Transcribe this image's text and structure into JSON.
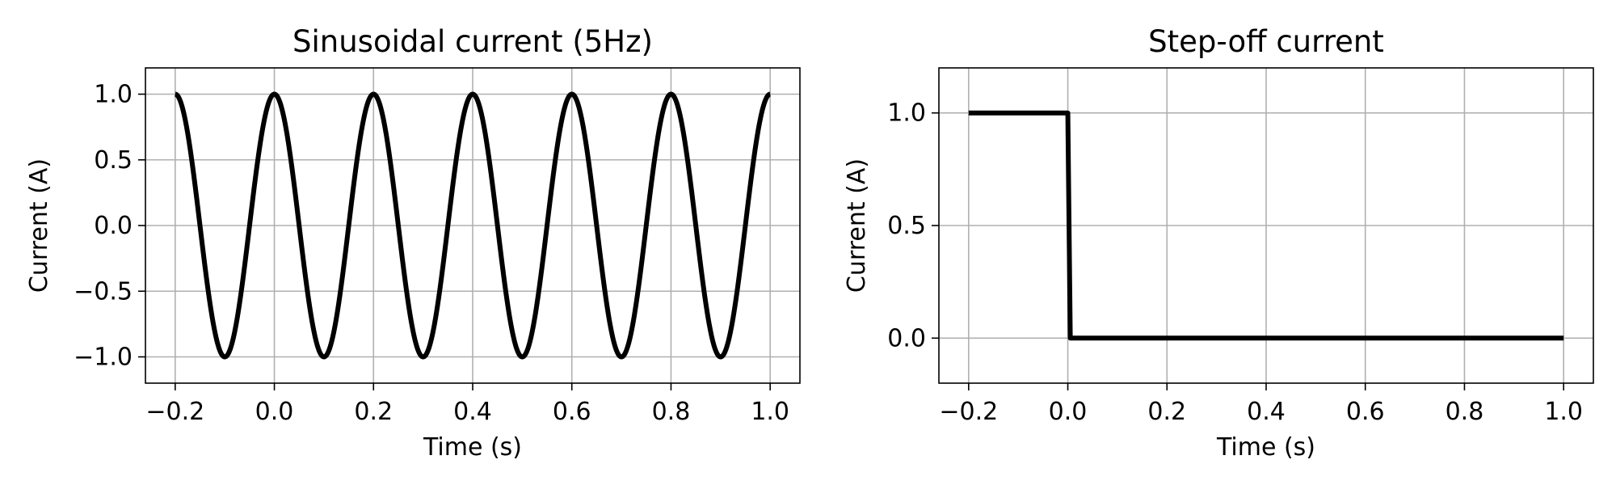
{
  "chart_data": [
    {
      "type": "line",
      "title": "Sinusoidal current (5Hz)",
      "xlabel": "Time (s)",
      "ylabel": "Current (A)",
      "xlim": [
        -0.26,
        1.06
      ],
      "ylim": [
        -1.2,
        1.2
      ],
      "xticks": [
        -0.2,
        0.0,
        0.2,
        0.4,
        0.6,
        0.8,
        1.0
      ],
      "xtick_labels": [
        "−0.2",
        "0.0",
        "0.2",
        "0.4",
        "0.6",
        "0.8",
        "1.0"
      ],
      "yticks": [
        1.0,
        0.5,
        0.0,
        -0.5,
        -1.0
      ],
      "ytick_labels": [
        "1.0",
        "0.5",
        "0.0",
        "−0.5",
        "−1.0"
      ],
      "grid": true,
      "series": [
        {
          "color": "#000000",
          "function": "cos(2*pi*5*t)",
          "frequency_hz": 5,
          "amplitude": 1.0,
          "x_range": [
            -0.2,
            1.0
          ]
        }
      ]
    },
    {
      "type": "line",
      "title": "Step-off current",
      "xlabel": "Time (s)",
      "ylabel": "Current (A)",
      "xlim": [
        -0.26,
        1.06
      ],
      "ylim": [
        -0.2,
        1.2
      ],
      "xticks": [
        -0.2,
        0.0,
        0.2,
        0.4,
        0.6,
        0.8,
        1.0
      ],
      "xtick_labels": [
        "−0.2",
        "0.0",
        "0.2",
        "0.4",
        "0.6",
        "0.8",
        "1.0"
      ],
      "yticks": [
        1.0,
        0.5,
        0.0
      ],
      "ytick_labels": [
        "1.0",
        "0.5",
        "0.0"
      ],
      "grid": true,
      "series": [
        {
          "color": "#000000",
          "x": [
            -0.2,
            0.0,
            0.005,
            1.0
          ],
          "y": [
            1.0,
            1.0,
            0.0,
            0.0
          ]
        }
      ]
    }
  ]
}
